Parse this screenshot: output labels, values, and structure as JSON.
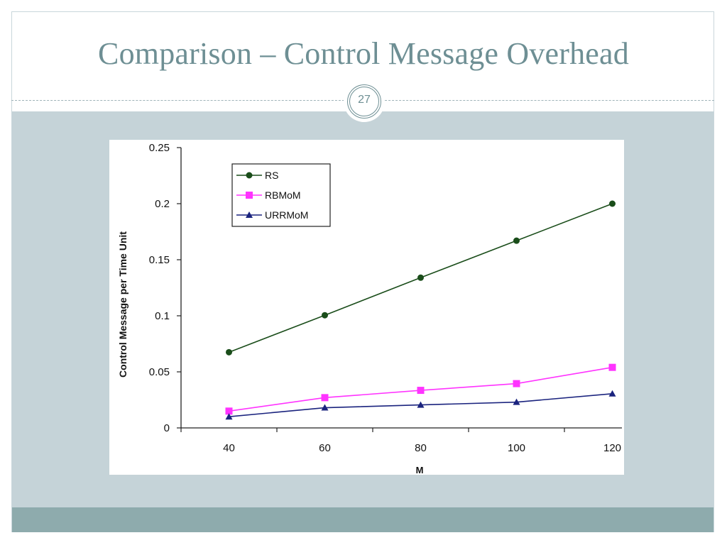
{
  "slide": {
    "title": "Comparison – Control Message Overhead",
    "page_number": "27"
  },
  "colors": {
    "title": "#6e8f94",
    "content_band": "#c5d3d8",
    "footer_band": "#8eabad"
  },
  "chart_data": {
    "type": "line",
    "title": "",
    "xlabel": "M",
    "ylabel": "Control Message per Time Unit",
    "x": [
      40,
      60,
      80,
      100,
      120
    ],
    "xticks": [
      "40",
      "60",
      "80",
      "100",
      "120"
    ],
    "yticks": [
      "0",
      "0.05",
      "0.1",
      "0.15",
      "0.2",
      "0.25"
    ],
    "xlim": [
      30,
      122
    ],
    "ylim": [
      0,
      0.25
    ],
    "grid": false,
    "legend_position": "top-left",
    "series": [
      {
        "name": "RS",
        "values": [
          0.0675,
          0.1005,
          0.134,
          0.167,
          0.2
        ],
        "color": "#1a4d1a",
        "marker": "circle"
      },
      {
        "name": "RBMoM",
        "values": [
          0.015,
          0.027,
          0.0335,
          0.0395,
          0.054
        ],
        "color": "#ff33ff",
        "marker": "square"
      },
      {
        "name": "URRMoM",
        "values": [
          0.01,
          0.018,
          0.0205,
          0.023,
          0.0305
        ],
        "color": "#1a237e",
        "marker": "triangle"
      }
    ]
  }
}
